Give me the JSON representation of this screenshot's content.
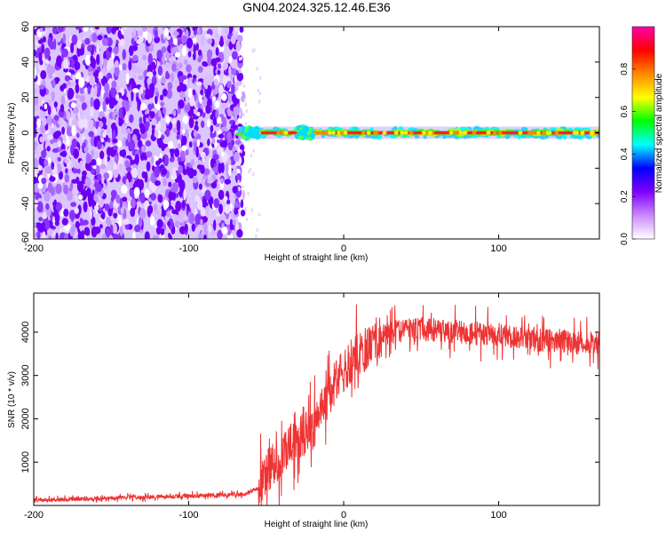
{
  "figure": {
    "title": "GN04.2024.325.12.46.E36"
  },
  "chart_data": [
    {
      "type": "heatmap",
      "title": "GN04.2024.325.12.46.E36",
      "xlabel": "Height of straight line (km)",
      "ylabel": "Frequency (Hz)",
      "xlim": [
        -200,
        165
      ],
      "ylim": [
        -60,
        60
      ],
      "x_ticks": [
        -200,
        -100,
        0,
        100
      ],
      "y_ticks": [
        -60,
        -40,
        -20,
        0,
        20,
        40,
        60
      ],
      "noise_region_x": [
        -200,
        -68
      ],
      "signal_region_x": [
        -68,
        165
      ],
      "signal_frequency_hz": 0,
      "grid": false,
      "colorbar": {
        "label": "Normalized spectral amplitude",
        "range": [
          0.0,
          1.0
        ],
        "ticks": [
          0.0,
          0.2,
          0.4,
          0.6,
          0.8
        ],
        "colormap": [
          "#ffffff",
          "#cc88ff",
          "#7f00ff",
          "#0000ff",
          "#00ffff",
          "#00ff00",
          "#ffff00",
          "#ff8800",
          "#ff0000",
          "#ff00aa"
        ]
      }
    },
    {
      "type": "line",
      "xlabel": "Height of straight line (km)",
      "ylabel": "SNR (10 * v/v)",
      "xlim": [
        -200,
        165
      ],
      "ylim": [
        0,
        4900
      ],
      "x_ticks": [
        -200,
        -100,
        0,
        100
      ],
      "y_ticks": [
        1000,
        2000,
        3000,
        4000
      ],
      "grid": false,
      "color": "#ee3333",
      "series": [
        {
          "x": [
            -200,
            -180,
            -160,
            -140,
            -120,
            -100,
            -80,
            -65,
            -55,
            -50,
            -45,
            -40,
            -35,
            -30,
            -25,
            -20,
            -15,
            -10,
            -5,
            0,
            5,
            10,
            15,
            20,
            25,
            30,
            40,
            50,
            60,
            70,
            80,
            90,
            100,
            110,
            120,
            130,
            140,
            150,
            160,
            165
          ],
          "values": [
            120,
            140,
            160,
            180,
            200,
            220,
            240,
            260,
            400,
            750,
            1000,
            1150,
            1350,
            1500,
            1650,
            1800,
            2100,
            2500,
            2850,
            3100,
            3350,
            3500,
            3650,
            3800,
            3950,
            4000,
            4050,
            4050,
            4050,
            4000,
            4000,
            3950,
            3950,
            3900,
            3850,
            3800,
            3800,
            3750,
            3750,
            3750
          ]
        }
      ]
    }
  ]
}
